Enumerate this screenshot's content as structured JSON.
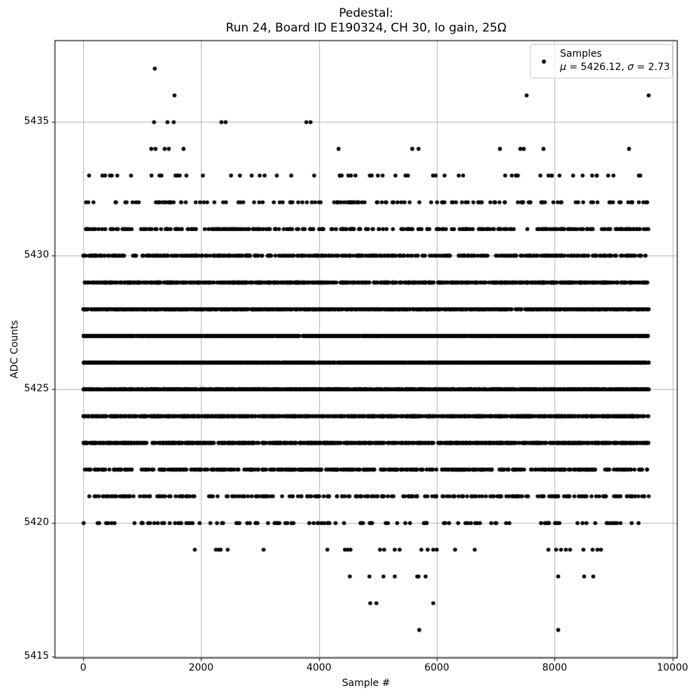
{
  "title": {
    "line1": "Pedestal:",
    "line2": "Run 24, Board ID E190324, CH 30, lo gain, 25Ω"
  },
  "axes": {
    "xlabel": "Sample #",
    "ylabel": "ADC Counts",
    "x_ticks": [
      0,
      2000,
      4000,
      6000,
      8000,
      10000
    ],
    "y_ticks": [
      5415,
      5420,
      5425,
      5430,
      5435
    ],
    "xlim": [
      -480,
      10080
    ],
    "ylim": [
      5414.95,
      5438.05
    ],
    "grid": true,
    "grid_color": "#b0b0b0",
    "spine_color": "#000000",
    "tick_color": "#000000"
  },
  "legend": {
    "title": "Samples",
    "stats": {
      "mu_symbol": "μ",
      "mu_rest": " = 5426.12, ",
      "sigma_symbol": "σ",
      "sigma_rest": " = 2.73"
    }
  },
  "chart_data": {
    "type": "scatter",
    "title": "Pedestal: Run 24, Board ID E190324, CH 30, lo gain, 25Ω",
    "xlabel": "Sample #",
    "ylabel": "ADC Counts",
    "legend_position": "upper right",
    "grid": true,
    "marker": "point",
    "marker_color": "#000000",
    "marker_radius_px": 2.8,
    "n_samples": 9600,
    "x_range": [
      0,
      9600
    ],
    "stats": {
      "mean": 5426.12,
      "sigma": 2.73
    },
    "y_is_quantized_integer_adc": true,
    "adc_level_counts": {
      "5420": 116,
      "5421": 246,
      "5422": 451,
      "5423": 730,
      "5424": 1037,
      "5425": 1286,
      "5426": 1392,
      "5427": 1325,
      "5428": 1104,
      "5429": 806,
      "5430": 509,
      "5431": 288,
      "5432": 141,
      "5433": 60
    },
    "sparse_points": {
      "5416": [
        5702,
        8060
      ],
      "5417": [
        4870,
        4975,
        5940
      ],
      "5418": [
        4524,
        4857,
        5095,
        5286,
        5667,
        5690,
        5810,
        8060,
        8500,
        8655
      ],
      "5419": [
        1893,
        2250,
        2298,
        2333,
        2452,
        3060,
        4143,
        4440,
        4488,
        4536,
        5036,
        5107,
        5286,
        5369,
        5738,
        5845,
        5940,
        6000,
        6310,
        6643,
        7893,
        8024,
        8107,
        8190,
        8262,
        8488,
        8643,
        8726,
        8786
      ],
      "5434": [
        1155,
        1226,
        1381,
        1452,
        1702,
        4333,
        5583,
        5690,
        7071,
        7417,
        7476,
        7810,
        9262
      ],
      "5435": [
        1202,
        1429,
        1536,
        2345,
        2417,
        3786,
        3857
      ],
      "5436": [
        1548,
        7524,
        9595
      ],
      "5437": [
        1214
      ]
    },
    "seed": 190324
  }
}
